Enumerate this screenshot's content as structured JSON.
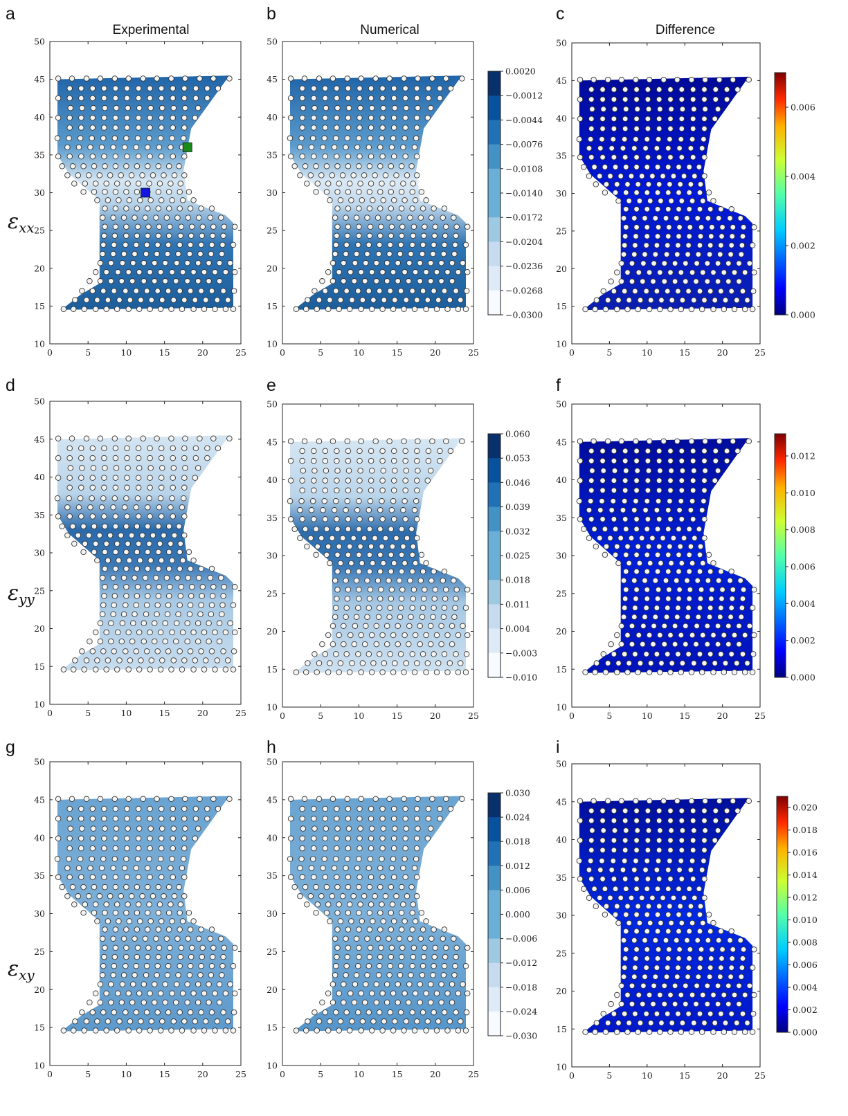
{
  "figure": {
    "column_titles": [
      "Experimental",
      "Numerical",
      "Difference"
    ],
    "row_labels": [
      {
        "main": "ε",
        "sub": "xx"
      },
      {
        "main": "ε",
        "sub": "yy"
      },
      {
        "main": "ε",
        "sub": "xy"
      }
    ],
    "panel_letters": [
      "a",
      "b",
      "c",
      "d",
      "e",
      "f",
      "g",
      "h",
      "i"
    ]
  },
  "chart_data": [
    {
      "id": "a",
      "type": "heatmap",
      "title": "",
      "xlabel": "",
      "ylabel": "",
      "xlim": [
        0,
        25
      ],
      "ylim": [
        10,
        50
      ],
      "xticks": [
        0,
        5,
        10,
        15,
        20,
        25
      ],
      "yticks": [
        10,
        15,
        20,
        25,
        30,
        35,
        40,
        45,
        50
      ],
      "field": "strain_xx_experimental",
      "colormap": "Blues",
      "markers": [
        {
          "x": 12.5,
          "y": 30,
          "color": "#1515e0",
          "shape": "square"
        },
        {
          "x": 18,
          "y": 36,
          "color": "#1a8a1a",
          "shape": "square"
        }
      ]
    },
    {
      "id": "b",
      "type": "heatmap",
      "title": "",
      "xlabel": "",
      "ylabel": "",
      "xlim": [
        0,
        25
      ],
      "ylim": [
        10,
        50
      ],
      "xticks": [
        0,
        5,
        10,
        15,
        20,
        25
      ],
      "yticks": [
        10,
        15,
        20,
        25,
        30,
        35,
        40,
        45,
        50
      ],
      "field": "strain_xx_numerical",
      "colormap": "Blues",
      "colorbar": {
        "ticks": [
          "0.0020",
          "−0.0012",
          "−0.0044",
          "−0.0076",
          "−0.0108",
          "−0.0140",
          "−0.0172",
          "−0.0204",
          "−0.0236",
          "−0.0268",
          "−0.0300"
        ]
      }
    },
    {
      "id": "c",
      "type": "heatmap",
      "title": "",
      "xlabel": "",
      "ylabel": "",
      "xlim": [
        0,
        25
      ],
      "ylim": [
        10,
        50
      ],
      "xticks": [
        0,
        5,
        10,
        15,
        20,
        25
      ],
      "yticks": [
        10,
        15,
        20,
        25,
        30,
        35,
        40,
        45,
        50
      ],
      "field": "strain_xx_difference",
      "colormap": "jet",
      "colorbar": {
        "min": 0,
        "max": 0.007,
        "ticks": [
          "0.006",
          "0.004",
          "0.002",
          "0.000"
        ]
      }
    },
    {
      "id": "d",
      "type": "heatmap",
      "title": "",
      "xlabel": "",
      "ylabel": "",
      "xlim": [
        0,
        25
      ],
      "ylim": [
        10,
        50
      ],
      "xticks": [
        0,
        5,
        10,
        15,
        20,
        25
      ],
      "yticks": [
        10,
        15,
        20,
        25,
        30,
        35,
        40,
        45,
        50
      ],
      "field": "strain_yy_experimental",
      "colormap": "Blues"
    },
    {
      "id": "e",
      "type": "heatmap",
      "title": "",
      "xlabel": "",
      "ylabel": "",
      "xlim": [
        0,
        25
      ],
      "ylim": [
        10,
        50
      ],
      "xticks": [
        0,
        5,
        10,
        15,
        20,
        25
      ],
      "yticks": [
        10,
        15,
        20,
        25,
        30,
        35,
        40,
        45,
        50
      ],
      "field": "strain_yy_numerical",
      "colormap": "Blues",
      "colorbar": {
        "ticks": [
          "0.060",
          "0.053",
          "0.046",
          "0.039",
          "0.032",
          "0.025",
          "0.018",
          "0.011",
          "0.004",
          "−0.003",
          "−0.010"
        ]
      }
    },
    {
      "id": "f",
      "type": "heatmap",
      "title": "",
      "xlabel": "",
      "ylabel": "",
      "xlim": [
        0,
        25
      ],
      "ylim": [
        10,
        50
      ],
      "xticks": [
        0,
        5,
        10,
        15,
        20,
        25
      ],
      "yticks": [
        10,
        15,
        20,
        25,
        30,
        35,
        40,
        45,
        50
      ],
      "field": "strain_yy_difference",
      "colormap": "jet",
      "colorbar": {
        "min": 0,
        "max": 0.0132,
        "ticks": [
          "0.012",
          "0.010",
          "0.008",
          "0.006",
          "0.004",
          "0.002",
          "0.000"
        ]
      }
    },
    {
      "id": "g",
      "type": "heatmap",
      "title": "",
      "xlabel": "",
      "ylabel": "",
      "xlim": [
        0,
        25
      ],
      "ylim": [
        10,
        50
      ],
      "xticks": [
        0,
        5,
        10,
        15,
        20,
        25
      ],
      "yticks": [
        10,
        15,
        20,
        25,
        30,
        35,
        40,
        45,
        50
      ],
      "field": "strain_xy_experimental",
      "colormap": "Blues"
    },
    {
      "id": "h",
      "type": "heatmap",
      "title": "",
      "xlabel": "",
      "ylabel": "",
      "xlim": [
        0,
        25
      ],
      "ylim": [
        10,
        50
      ],
      "xticks": [
        0,
        5,
        10,
        15,
        20,
        25
      ],
      "yticks": [
        10,
        15,
        20,
        25,
        30,
        35,
        40,
        45,
        50
      ],
      "field": "strain_xy_numerical",
      "colormap": "Blues",
      "colorbar": {
        "ticks": [
          "0.030",
          "0.024",
          "0.018",
          "0.012",
          "0.006",
          "0.000",
          "−0.006",
          "−0.012",
          "−0.018",
          "−0.024",
          "−0.030"
        ]
      }
    },
    {
      "id": "i",
      "type": "heatmap",
      "title": "",
      "xlabel": "",
      "ylabel": "",
      "xlim": [
        0,
        25
      ],
      "ylim": [
        10,
        50
      ],
      "xticks": [
        0,
        5,
        10,
        15,
        20,
        25
      ],
      "yticks": [
        10,
        15,
        20,
        25,
        30,
        35,
        40,
        45,
        50
      ],
      "field": "strain_xy_difference",
      "colormap": "jet",
      "colorbar": {
        "min": 0,
        "max": 0.021,
        "ticks": [
          "0.020",
          "0.018",
          "0.016",
          "0.014",
          "0.012",
          "0.010",
          "0.008",
          "0.006",
          "0.004",
          "0.002",
          "0.000"
        ]
      }
    }
  ],
  "specimen": {
    "outline": [
      [
        1.5,
        14.5
      ],
      [
        24,
        14.8
      ],
      [
        24,
        26
      ],
      [
        23,
        27
      ],
      [
        18,
        29
      ],
      [
        17.5,
        33
      ],
      [
        18.5,
        38.5
      ],
      [
        23.5,
        45.5
      ],
      [
        1,
        45
      ],
      [
        1,
        35
      ],
      [
        2.5,
        32.5
      ],
      [
        6.5,
        29
      ],
      [
        6.5,
        18
      ],
      [
        4,
        16.5
      ]
    ],
    "node_rows": [
      {
        "y": 14.6,
        "xs": [
          1.8,
          3.1,
          4.5,
          6,
          7.4,
          8.8,
          10.3,
          11.7,
          13.1,
          14.5,
          15.9,
          17.3,
          18.8,
          20.2,
          21.6,
          23,
          24
        ]
      },
      {
        "y": 15.8,
        "xs": [
          3.3,
          4.8,
          6.2,
          7.6,
          9.1,
          10.5,
          11.9,
          13.3,
          14.7,
          16.2,
          17.6,
          19,
          20.4,
          21.9,
          23.3
        ]
      },
      {
        "y": 17,
        "xs": [
          4.2,
          5.6,
          7,
          8.4,
          9.9,
          11.3,
          12.7,
          14.1,
          15.5,
          17,
          18.4,
          19.8,
          21.2,
          22.7,
          24.1
        ]
      },
      {
        "y": 18.3,
        "xs": [
          5.2,
          6.6,
          8,
          9.4,
          10.8,
          12.3,
          13.7,
          15.1,
          16.5,
          18,
          19.4,
          20.8,
          22.2
        ]
      },
      {
        "y": 19.5,
        "xs": [
          6,
          7.4,
          8.9,
          10.3,
          11.7,
          13.1,
          14.5,
          16,
          17.4,
          18.8,
          20.2,
          21.6,
          23,
          24.2
        ]
      },
      {
        "y": 20.7,
        "xs": [
          6.6,
          8,
          9.5,
          10.9,
          12.3,
          13.7,
          15.1,
          16.6,
          18,
          19.4,
          20.8,
          22.2,
          23.6
        ]
      },
      {
        "y": 21.9,
        "xs": [
          6.9,
          8.3,
          9.7,
          11.1,
          12.6,
          14,
          15.4,
          16.8,
          18.3,
          19.7,
          21.1,
          22.5
        ]
      },
      {
        "y": 23.1,
        "xs": [
          7,
          8.4,
          9.9,
          11.3,
          12.7,
          14.1,
          15.5,
          17,
          18.4,
          19.8,
          21.2,
          22.6,
          24
        ]
      },
      {
        "y": 24.3,
        "xs": [
          7.1,
          8.5,
          10,
          11.4,
          12.8,
          14.2,
          15.6,
          17.1,
          18.5,
          19.9,
          21.3,
          22.7
        ]
      },
      {
        "y": 25.5,
        "xs": [
          7.2,
          8.6,
          10,
          11.5,
          12.9,
          14.3,
          15.7,
          17.2,
          18.6,
          20,
          21.4,
          22.8,
          24.2
        ]
      },
      {
        "y": 26.7,
        "xs": [
          6.9,
          8.3,
          9.7,
          11.1,
          12.5,
          13.9,
          15.3,
          16.7,
          18.1,
          19.5,
          21,
          22.4
        ]
      },
      {
        "y": 27.9,
        "xs": [
          7.2,
          8.6,
          10,
          11.4,
          12.8,
          14.2,
          15.6,
          17,
          18.4,
          19.8,
          21.2
        ]
      },
      {
        "y": 29,
        "xs": [
          6.2,
          7.6,
          9,
          10.4,
          11.8,
          13.2,
          14.6,
          16,
          17.4,
          18.8
        ]
      },
      {
        "y": 30.1,
        "xs": [
          4.4,
          5.8,
          7.2,
          8.6,
          10,
          11.4,
          12.8,
          14.2,
          15.6,
          17,
          18.2
        ]
      },
      {
        "y": 31.2,
        "xs": [
          3.2,
          4.6,
          6,
          7.4,
          8.8,
          10.2,
          11.6,
          13,
          14.4,
          15.8,
          17.1
        ]
      },
      {
        "y": 32.3,
        "xs": [
          2.3,
          3.7,
          5.1,
          6.5,
          7.9,
          9.3,
          10.7,
          12.1,
          13.5,
          14.9,
          16.3,
          17.6
        ]
      },
      {
        "y": 33.5,
        "xs": [
          1.6,
          3,
          4.4,
          5.8,
          7.2,
          8.6,
          10,
          11.4,
          12.8,
          14.2,
          15.6,
          16.9
        ]
      },
      {
        "y": 34.8,
        "xs": [
          1.1,
          2.6,
          4.1,
          5.6,
          7.1,
          8.6,
          10.1,
          11.6,
          13.1,
          14.6,
          16.1,
          17.6
        ]
      },
      {
        "y": 36,
        "xs": [
          2.3,
          3.8,
          5.3,
          6.8,
          8.3,
          9.8,
          11.3,
          12.8,
          14.3,
          15.8,
          17.3
        ]
      },
      {
        "y": 37.2,
        "xs": [
          1,
          2.5,
          4,
          5.5,
          7,
          8.5,
          10,
          11.5,
          13,
          14.5,
          16,
          17.5
        ]
      },
      {
        "y": 38.6,
        "xs": [
          2.6,
          4.1,
          5.6,
          7.1,
          8.6,
          10.1,
          11.6,
          13.1,
          14.6,
          16.1,
          17.6
        ]
      },
      {
        "y": 39.9,
        "xs": [
          1.1,
          2.6,
          4.1,
          5.6,
          7.1,
          8.6,
          10.1,
          11.6,
          13.1,
          14.6,
          16.1,
          17.6,
          19
        ]
      },
      {
        "y": 41.2,
        "xs": [
          2.7,
          4.2,
          5.7,
          7.2,
          8.7,
          10.2,
          11.7,
          13.2,
          14.7,
          16.2,
          17.7,
          19.4
        ]
      },
      {
        "y": 42.5,
        "xs": [
          1.1,
          2.6,
          4.1,
          5.6,
          7.1,
          8.6,
          10.1,
          11.6,
          13.1,
          14.6,
          16.1,
          17.6,
          19.1,
          20.6
        ]
      },
      {
        "y": 43.8,
        "xs": [
          2.6,
          4.1,
          5.6,
          7.1,
          8.6,
          10.1,
          11.6,
          13.1,
          14.6,
          16.1,
          17.6,
          19.1,
          20.6,
          22
        ]
      },
      {
        "y": 45.1,
        "xs": [
          1.1,
          2.9,
          4.8,
          6.6,
          8.5,
          10.3,
          12.2,
          14,
          15.9,
          17.7,
          19.6,
          21.4,
          23.5
        ]
      }
    ]
  }
}
